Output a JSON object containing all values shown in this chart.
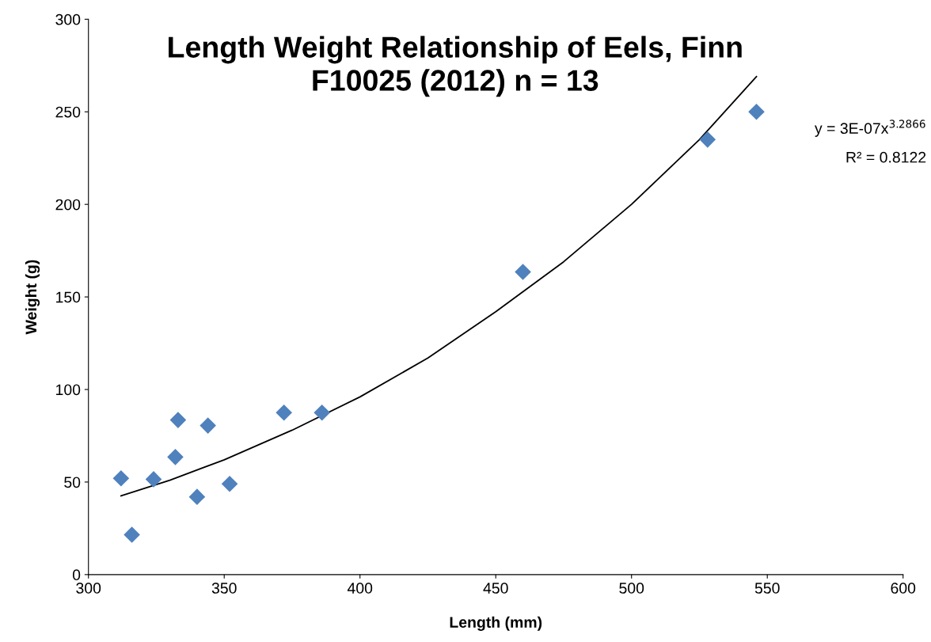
{
  "chart_data": {
    "type": "scatter",
    "title": "Length Weight Relationship of Eels, Finn\nF10025 (2012) n = 13",
    "xlabel": "Length (mm)",
    "ylabel": "Weight (g)",
    "xlim": [
      300,
      600
    ],
    "xticks": [
      300,
      350,
      400,
      450,
      500,
      550,
      600
    ],
    "ylim": [
      0,
      300
    ],
    "yticks": [
      0,
      50,
      100,
      150,
      200,
      250,
      300
    ],
    "grid": false,
    "legend": false,
    "marker": "diamond",
    "annotations": [
      "y = 3E-07x$^{3.2866}$",
      "R² = 0.8122"
    ],
    "series": [
      {
        "color": "#4f81bd",
        "x": [
          312,
          316,
          324,
          332,
          333,
          340,
          344,
          352,
          372,
          386,
          460,
          528,
          546
        ],
        "values": [
          52,
          21.5,
          51.5,
          63.5,
          83.5,
          42,
          80.5,
          49,
          87.5,
          87.5,
          163.5,
          235,
          250
        ]
      },
      {
        "type": "line",
        "color": "#000000",
        "line_style": "solid",
        "marker": "none",
        "x": [
          312,
          330,
          350,
          375,
          400,
          425,
          450,
          475,
          500,
          525,
          546
        ],
        "values": [
          42.5,
          51,
          62,
          78,
          96,
          117,
          142,
          169,
          200,
          235,
          269
        ]
      }
    ]
  }
}
